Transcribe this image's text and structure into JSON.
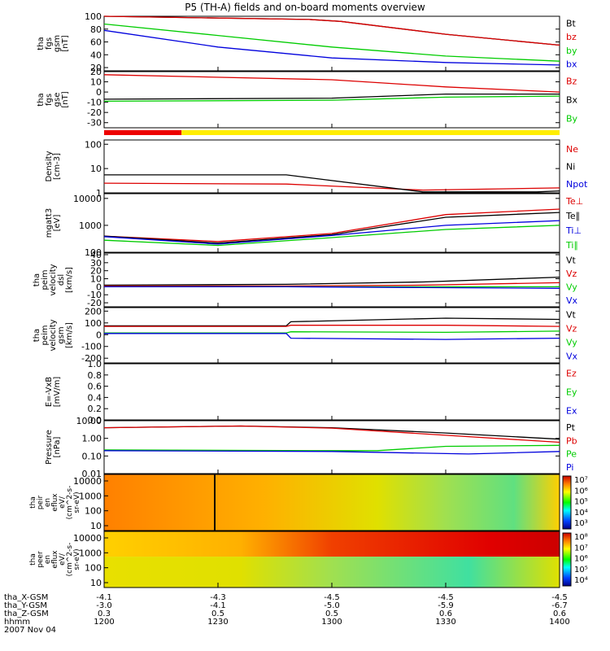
{
  "chart_data": {
    "type": "line",
    "title": "P5 (TH-A) fields and on-board moments overview",
    "date": "2007 Nov 04",
    "time_ticks": [
      "1200",
      "1230",
      "1300",
      "1330",
      "1400"
    ],
    "ephemeris": [
      {
        "label": "tha_X-GSM",
        "values": [
          "-4.1",
          "-4.3",
          "-4.5",
          "-4.5",
          "-4.5"
        ]
      },
      {
        "label": "tha_Y-GSM",
        "values": [
          "-3.0",
          "-4.1",
          "-5.0",
          "-5.9",
          "-6.7"
        ]
      },
      {
        "label": "tha_Z-GSM",
        "values": [
          "0.3",
          "0.5",
          "0.5",
          "0.6",
          "0.6"
        ]
      },
      {
        "label": "hhmm",
        "values": [
          "1200",
          "1230",
          "1300",
          "1330",
          "1400"
        ]
      }
    ],
    "colors": {
      "black": "#000000",
      "red": "#dd0000",
      "green": "#00cc00",
      "blue": "#0000dd"
    },
    "panels": [
      {
        "id": "fgs_gsm",
        "ylabel": [
          "tha",
          "fgs",
          "gsm",
          "[nT]"
        ],
        "yrange": [
          15,
          100
        ],
        "scale": "linear",
        "ticks": [
          "100",
          "80",
          "60",
          "40",
          "20"
        ],
        "tick_values": [
          100,
          80,
          60,
          40,
          20
        ],
        "series": [
          {
            "name": "Bt",
            "color": "black",
            "x": [
              0,
              0.45,
              0.52,
              0.75,
              1
            ],
            "y": [
              100,
              95,
              92,
              72,
              55
            ]
          },
          {
            "name": "bz",
            "color": "red",
            "x": [
              0,
              0.45,
              0.52,
              0.75,
              1
            ],
            "y": [
              100,
              95,
              92,
              72,
              55
            ]
          },
          {
            "name": "by",
            "color": "green",
            "x": [
              0,
              0.25,
              0.5,
              0.75,
              1
            ],
            "y": [
              88,
              70,
              52,
              38,
              30
            ]
          },
          {
            "name": "bx",
            "color": "blue",
            "x": [
              0,
              0.25,
              0.5,
              0.75,
              1
            ],
            "y": [
              78,
              52,
              35,
              28,
              24
            ]
          }
        ]
      },
      {
        "id": "fgs_gse",
        "ylabel": [
          "tha",
          "fgs",
          "gse",
          "[nT]"
        ],
        "yrange": [
          -35,
          20
        ],
        "scale": "linear",
        "ticks": [
          "20",
          "10",
          "0",
          "-10",
          "-20",
          "-30"
        ],
        "tick_values": [
          20,
          10,
          0,
          -10,
          -20,
          -30
        ],
        "series": [
          {
            "name": "Bz",
            "color": "red",
            "x": [
              0,
              0.5,
              0.75,
              1
            ],
            "y": [
              17,
              12,
              5,
              0
            ]
          },
          {
            "name": "Bx",
            "color": "black",
            "x": [
              0,
              0.5,
              0.75,
              1
            ],
            "y": [
              -7,
              -6,
              -2,
              -2
            ]
          },
          {
            "name": "By",
            "color": "green",
            "x": [
              0,
              0.5,
              0.75,
              1
            ],
            "y": [
              -9,
              -8,
              -5,
              -4
            ]
          }
        ]
      },
      {
        "id": "density",
        "ylabel": [
          "Density",
          "[cm-3]"
        ],
        "yrange": [
          1,
          150
        ],
        "scale": "log",
        "ticks": [
          "100",
          "10",
          "1"
        ],
        "tick_values": [
          100,
          10,
          1
        ],
        "series": [
          {
            "name": "Ne",
            "color": "red",
            "x": [
              0,
              0.4,
              0.7,
              1
            ],
            "y": [
              2.5,
              2.3,
              1.3,
              1.6
            ]
          },
          {
            "name": "Ni",
            "color": "black",
            "x": [
              0,
              0.4,
              0.7,
              0.95,
              1
            ],
            "y": [
              5.5,
              5.5,
              1.1,
              1.1,
              1.2
            ]
          },
          {
            "name": "Npot",
            "color": "blue",
            "x": [],
            "y": []
          }
        ]
      },
      {
        "id": "temperature",
        "ylabel": [
          "mgatt3",
          "[eV]"
        ],
        "yrange": [
          100,
          15000
        ],
        "scale": "log",
        "ticks": [
          "10000",
          "1000",
          "100"
        ],
        "tick_values": [
          10000,
          1000,
          100
        ],
        "series": [
          {
            "name": "Te⊥",
            "color": "red",
            "x": [
              0,
              0.25,
              0.5,
              0.75,
              1
            ],
            "y": [
              400,
              250,
              500,
              2500,
              4000
            ]
          },
          {
            "name": "Te∥",
            "color": "black",
            "x": [
              0,
              0.25,
              0.5,
              0.75,
              1
            ],
            "y": [
              400,
              220,
              450,
              2000,
              3000
            ]
          },
          {
            "name": "Ti⊥",
            "color": "blue",
            "x": [
              0,
              0.25,
              0.5,
              0.75,
              1
            ],
            "y": [
              380,
              200,
              420,
              1000,
              1500
            ]
          },
          {
            "name": "Ti∥",
            "color": "green",
            "x": [
              0,
              0.25,
              0.5,
              0.75,
              1
            ],
            "y": [
              280,
              180,
              350,
              700,
              1000
            ]
          }
        ]
      },
      {
        "id": "velocity_dsl",
        "ylabel": [
          "tha",
          "peim",
          "velocity",
          "dsl",
          "[km/s]"
        ],
        "yrange": [
          -25,
          42
        ],
        "scale": "linear",
        "ticks": [
          "40",
          "30",
          "20",
          "10",
          "0",
          "-10",
          "-20"
        ],
        "tick_values": [
          40,
          30,
          20,
          10,
          0,
          -10,
          -20
        ],
        "series": [
          {
            "name": "Vt",
            "color": "black",
            "x": [
              0,
              0.4,
              0.7,
              1
            ],
            "y": [
              2,
              3,
              6,
              12
            ]
          },
          {
            "name": "Vz",
            "color": "red",
            "x": [
              0,
              0.4,
              0.7,
              1
            ],
            "y": [
              1,
              1,
              2,
              5
            ]
          },
          {
            "name": "Vy",
            "color": "green",
            "x": [
              0,
              0.4,
              0.7,
              1
            ],
            "y": [
              0,
              0,
              0,
              0
            ]
          },
          {
            "name": "Vx",
            "color": "blue",
            "x": [
              0,
              0.4,
              0.7,
              1
            ],
            "y": [
              0,
              0,
              -1,
              -2
            ]
          }
        ]
      },
      {
        "id": "velocity_gsm",
        "ylabel": [
          "tha",
          "peim",
          "velocity",
          "gsm",
          "[km/s]"
        ],
        "yrange": [
          -240,
          230
        ],
        "scale": "linear",
        "ticks": [
          "200",
          "100",
          "0",
          "-100",
          "-200"
        ],
        "tick_values": [
          200,
          100,
          0,
          -100,
          -200
        ],
        "series": [
          {
            "name": "Vt",
            "color": "black",
            "x": [
              0,
              0.4,
              0.41,
              0.75,
              1
            ],
            "y": [
              75,
              75,
              110,
              140,
              130
            ]
          },
          {
            "name": "Vz",
            "color": "red",
            "x": [
              0,
              0.4,
              0.41,
              0.75,
              1
            ],
            "y": [
              70,
              70,
              80,
              80,
              70
            ]
          },
          {
            "name": "Vy",
            "color": "green",
            "x": [
              0,
              0.4,
              0.41,
              0.75,
              1
            ],
            "y": [
              15,
              15,
              25,
              20,
              30
            ]
          },
          {
            "name": "Vx",
            "color": "blue",
            "x": [
              0,
              0.4,
              0.41,
              0.75,
              1
            ],
            "y": [
              10,
              10,
              -30,
              -40,
              -30
            ]
          }
        ]
      },
      {
        "id": "efield",
        "ylabel": [
          "E=-VxB",
          "[mV/m]"
        ],
        "yrange": [
          0,
          1
        ],
        "scale": "linear",
        "ticks": [
          "1.0",
          "0.8",
          "0.6",
          "0.4",
          "0.2",
          "0.0"
        ],
        "tick_values": [
          1,
          0.8,
          0.6,
          0.4,
          0.2,
          0
        ],
        "series": [
          {
            "name": "Ez",
            "color": "red",
            "x": [],
            "y": []
          },
          {
            "name": "Ey",
            "color": "green",
            "x": [],
            "y": []
          },
          {
            "name": "Ex",
            "color": "blue",
            "x": [],
            "y": []
          }
        ]
      },
      {
        "id": "pressure",
        "ylabel": [
          "Pressure",
          "[nPa]"
        ],
        "yrange": [
          0.01,
          10
        ],
        "scale": "log",
        "ticks": [
          "10.00",
          "1.00",
          "0.10",
          "0.01"
        ],
        "tick_values": [
          10,
          1,
          0.1,
          0.01
        ],
        "series": [
          {
            "name": "Pt",
            "color": "black",
            "x": [
              0,
              0.3,
              0.5,
              0.75,
              1
            ],
            "y": [
              4,
              5,
              4,
              2,
              0.9
            ]
          },
          {
            "name": "Pb",
            "color": "red",
            "x": [
              0,
              0.3,
              0.5,
              0.75,
              1
            ],
            "y": [
              4,
              5,
              3.8,
              1.5,
              0.6
            ]
          },
          {
            "name": "Pe",
            "color": "green",
            "x": [
              0,
              0.5,
              0.6,
              0.75,
              1
            ],
            "y": [
              0.22,
              0.2,
              0.2,
              0.35,
              0.4
            ]
          },
          {
            "name": "Pi",
            "color": "blue",
            "x": [
              0,
              0.5,
              0.8,
              1
            ],
            "y": [
              0.2,
              0.18,
              0.13,
              0.18
            ]
          }
        ]
      }
    ],
    "spectrograms": [
      {
        "id": "peir",
        "ylabel": [
          "tha",
          "peir",
          "en",
          "eflux",
          "eV/",
          "(cm^2-s-",
          "sr-eV)"
        ],
        "ticks": [
          "10000",
          "1000",
          "100",
          "10"
        ],
        "colorbar_ticks": [
          "10^7",
          "10^6",
          "10^5",
          "10^4",
          "10^3"
        ]
      },
      {
        "id": "peer",
        "ylabel": [
          "tha",
          "peer",
          "en",
          "eflux",
          "eV/",
          "(cm^2-s-",
          "sr-eV)"
        ],
        "ticks": [
          "10000",
          "1000",
          "100",
          "10"
        ],
        "colorbar_ticks": [
          "10^8",
          "10^7",
          "10^6",
          "10^5",
          "10^4"
        ]
      }
    ],
    "mode_bar": {
      "segments": [
        {
          "color": "red",
          "fraction": 0.17
        },
        {
          "color": "yellow",
          "fraction": 0.83
        }
      ]
    }
  }
}
